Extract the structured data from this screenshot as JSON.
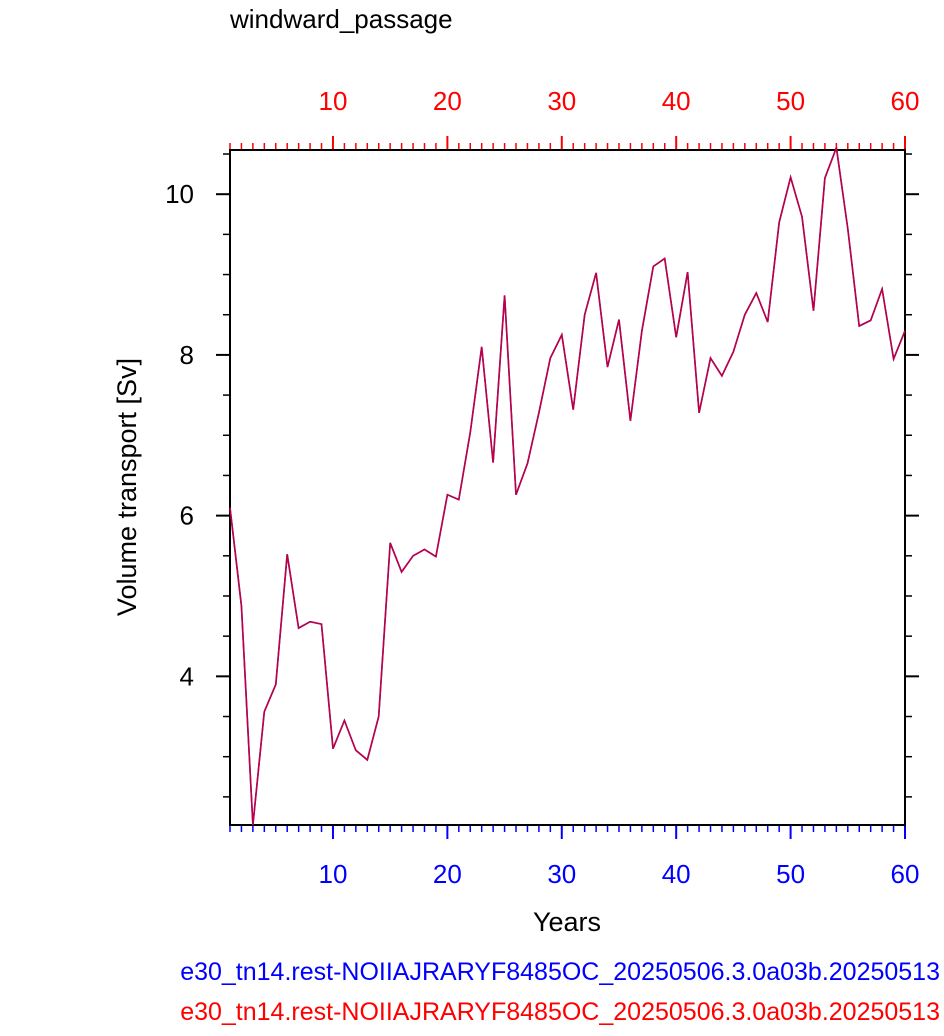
{
  "chart_data": {
    "type": "line",
    "title": "windward_passage",
    "xlabel": "Years",
    "ylabel": "Volume transport [Sv]",
    "xlim": [
      1,
      60
    ],
    "ylim": [
      2.15,
      10.55
    ],
    "x_ticks": [
      10,
      20,
      30,
      40,
      50,
      60
    ],
    "y_ticks": [
      4,
      6,
      8,
      10
    ],
    "x_ticks_top": [
      10,
      20,
      30,
      40,
      50,
      60
    ],
    "grid": false,
    "bottom_axis_color": "#0000ff",
    "top_axis_color": "#ff0000",
    "series": [
      {
        "name": "e30_tn14.rest-NOIIAJRARYF8485OC_20250506.3.0a03b.20250513",
        "color": "#0000ff",
        "x": [
          1,
          2,
          3,
          4,
          5,
          6,
          7,
          8,
          9,
          10,
          11,
          12,
          13,
          14,
          15,
          16,
          17,
          18,
          19,
          20,
          21,
          22,
          23,
          24,
          25,
          26,
          27,
          28,
          29,
          30,
          31,
          32,
          33,
          34,
          35,
          36,
          37,
          38,
          39,
          40,
          41,
          42,
          43,
          44,
          45,
          46,
          47,
          48,
          49,
          50,
          51,
          52,
          53,
          54,
          55,
          56,
          57,
          58,
          59,
          60
        ],
        "values": [
          6.1,
          4.88,
          2.15,
          3.56,
          3.9,
          5.52,
          4.6,
          4.68,
          4.65,
          3.1,
          3.45,
          3.08,
          2.96,
          3.5,
          5.66,
          5.3,
          5.5,
          5.58,
          5.49,
          6.26,
          6.2,
          7.04,
          8.1,
          6.66,
          8.74,
          6.26,
          6.65,
          7.28,
          7.96,
          8.25,
          7.32,
          8.5,
          9.02,
          7.85,
          8.44,
          7.18,
          8.3,
          9.1,
          9.2,
          8.22,
          9.03,
          7.28,
          7.96,
          7.74,
          8.04,
          8.5,
          8.77,
          8.41,
          9.65,
          10.21,
          9.72,
          8.55,
          10.2,
          10.58,
          9.57,
          8.36,
          8.43,
          8.82,
          7.95,
          8.3
        ]
      },
      {
        "name": "e30_tn14.rest-NOIIAJRARYF8485OC_20250506.3.0a03b.20250513",
        "color": "#ff0000",
        "x": [
          1,
          2,
          3,
          4,
          5,
          6,
          7,
          8,
          9,
          10,
          11,
          12,
          13,
          14,
          15,
          16,
          17,
          18,
          19,
          20,
          21,
          22,
          23,
          24,
          25,
          26,
          27,
          28,
          29,
          30,
          31,
          32,
          33,
          34,
          35,
          36,
          37,
          38,
          39,
          40,
          41,
          42,
          43,
          44,
          45,
          46,
          47,
          48,
          49,
          50,
          51,
          52,
          53,
          54,
          55,
          56,
          57,
          58,
          59,
          60
        ],
        "values": [
          6.1,
          4.88,
          2.15,
          3.56,
          3.9,
          5.52,
          4.6,
          4.68,
          4.65,
          3.1,
          3.45,
          3.08,
          2.96,
          3.5,
          5.66,
          5.3,
          5.5,
          5.58,
          5.49,
          6.26,
          6.2,
          7.04,
          8.1,
          6.66,
          8.74,
          6.26,
          6.65,
          7.28,
          7.96,
          8.25,
          7.32,
          8.5,
          9.02,
          7.85,
          8.44,
          7.18,
          8.3,
          9.1,
          9.2,
          8.22,
          9.03,
          7.28,
          7.96,
          7.74,
          8.04,
          8.5,
          8.77,
          8.41,
          9.65,
          10.21,
          9.72,
          8.55,
          10.2,
          10.58,
          9.57,
          8.36,
          8.43,
          8.82,
          7.95,
          8.3
        ]
      }
    ]
  }
}
